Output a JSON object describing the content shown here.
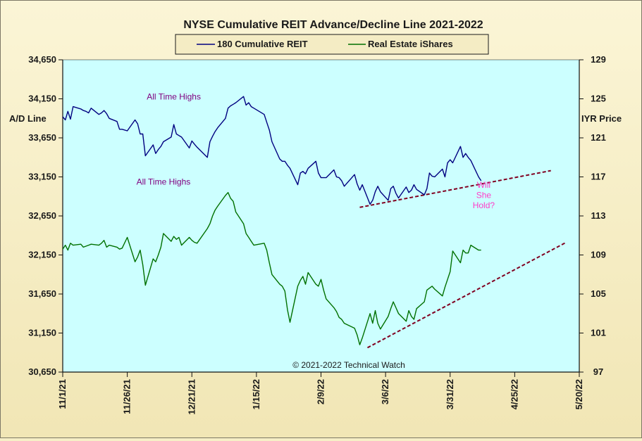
{
  "chart_data": {
    "type": "line",
    "title": "NYSE Cumulative  REIT Advance/Decline  Line 2021-2022",
    "legend": {
      "placement": "top-center"
    },
    "y_left": {
      "label": "A/D Line",
      "range": [
        30650,
        34650
      ],
      "ticks": [
        "34,650",
        "34,150",
        "33,650",
        "33,150",
        "32,650",
        "32,150",
        "31,650",
        "31,150",
        "30,650"
      ]
    },
    "y_right": {
      "label": "IYR Price",
      "range": [
        97,
        129
      ],
      "ticks": [
        "129",
        "125",
        "121",
        "117",
        "113",
        "109",
        "105",
        "101",
        "97"
      ]
    },
    "x_axis": {
      "type": "date",
      "ticks": [
        "11/1/21",
        "11/26/21",
        "12/21/21",
        "1/15/22",
        "2/9/22",
        "3/6/22",
        "3/31/22",
        "4/25/22",
        "5/20/22"
      ]
    },
    "colors": {
      "plot_bg": "#ccffff",
      "ad_line": "#000080",
      "iyr_line": "#007000",
      "trendline": "#800020",
      "annotation": "#800080",
      "question": "#ff3cc8"
    },
    "series": [
      {
        "name": "180 Cumulative REIT",
        "axis": "left",
        "points": [
          [
            "2021-11-01",
            33920
          ],
          [
            "2021-11-02",
            33880
          ],
          [
            "2021-11-03",
            33990
          ],
          [
            "2021-11-04",
            33890
          ],
          [
            "2021-11-05",
            34050
          ],
          [
            "2021-11-08",
            34020
          ],
          [
            "2021-11-09",
            34000
          ],
          [
            "2021-11-10",
            33990
          ],
          [
            "2021-11-11",
            33970
          ],
          [
            "2021-11-12",
            34030
          ],
          [
            "2021-11-15",
            33950
          ],
          [
            "2021-11-16",
            33970
          ],
          [
            "2021-11-17",
            34000
          ],
          [
            "2021-11-18",
            33960
          ],
          [
            "2021-11-19",
            33900
          ],
          [
            "2021-11-22",
            33860
          ],
          [
            "2021-11-23",
            33760
          ],
          [
            "2021-11-24",
            33760
          ],
          [
            "2021-11-26",
            33740
          ],
          [
            "2021-11-29",
            33880
          ],
          [
            "2021-11-30",
            33830
          ],
          [
            "2021-12-01",
            33700
          ],
          [
            "2021-12-02",
            33700
          ],
          [
            "2021-12-03",
            33420
          ],
          [
            "2021-12-06",
            33560
          ],
          [
            "2021-12-07",
            33450
          ],
          [
            "2021-12-08",
            33500
          ],
          [
            "2021-12-09",
            33540
          ],
          [
            "2021-12-10",
            33600
          ],
          [
            "2021-12-13",
            33660
          ],
          [
            "2021-12-14",
            33820
          ],
          [
            "2021-12-15",
            33700
          ],
          [
            "2021-12-16",
            33680
          ],
          [
            "2021-12-17",
            33660
          ],
          [
            "2021-12-20",
            33520
          ],
          [
            "2021-12-21",
            33610
          ],
          [
            "2021-12-22",
            33570
          ],
          [
            "2021-12-23",
            33530
          ],
          [
            "2021-12-27",
            33400
          ],
          [
            "2021-12-28",
            33600
          ],
          [
            "2021-12-29",
            33670
          ],
          [
            "2021-12-30",
            33730
          ],
          [
            "2021-12-31",
            33780
          ],
          [
            "2022-01-03",
            33900
          ],
          [
            "2022-01-04",
            34030
          ],
          [
            "2022-01-05",
            34060
          ],
          [
            "2022-01-06",
            34080
          ],
          [
            "2022-01-07",
            34100
          ],
          [
            "2022-01-10",
            34180
          ],
          [
            "2022-01-11",
            34070
          ],
          [
            "2022-01-12",
            34100
          ],
          [
            "2022-01-13",
            34050
          ],
          [
            "2022-01-14",
            34030
          ],
          [
            "2022-01-18",
            33950
          ],
          [
            "2022-01-19",
            33850
          ],
          [
            "2022-01-20",
            33750
          ],
          [
            "2022-01-21",
            33600
          ],
          [
            "2022-01-24",
            33380
          ],
          [
            "2022-01-25",
            33350
          ],
          [
            "2022-01-26",
            33350
          ],
          [
            "2022-01-27",
            33300
          ],
          [
            "2022-01-28",
            33260
          ],
          [
            "2022-01-31",
            33050
          ],
          [
            "2022-02-01",
            33200
          ],
          [
            "2022-02-02",
            33220
          ],
          [
            "2022-02-03",
            33190
          ],
          [
            "2022-02-04",
            33260
          ],
          [
            "2022-02-07",
            33350
          ],
          [
            "2022-02-08",
            33200
          ],
          [
            "2022-02-09",
            33140
          ],
          [
            "2022-02-10",
            33140
          ],
          [
            "2022-02-11",
            33140
          ],
          [
            "2022-02-14",
            33240
          ],
          [
            "2022-02-15",
            33150
          ],
          [
            "2022-02-16",
            33140
          ],
          [
            "2022-02-17",
            33100
          ],
          [
            "2022-02-18",
            33030
          ],
          [
            "2022-02-22",
            33180
          ],
          [
            "2022-02-23",
            33060
          ],
          [
            "2022-02-24",
            32980
          ],
          [
            "2022-02-25",
            33050
          ],
          [
            "2022-02-28",
            32800
          ],
          [
            "2022-03-01",
            32850
          ],
          [
            "2022-03-02",
            32960
          ],
          [
            "2022-03-03",
            33030
          ],
          [
            "2022-03-04",
            32960
          ],
          [
            "2022-03-07",
            32850
          ],
          [
            "2022-03-08",
            33000
          ],
          [
            "2022-03-09",
            33030
          ],
          [
            "2022-03-10",
            32940
          ],
          [
            "2022-03-11",
            32880
          ],
          [
            "2022-03-14",
            33020
          ],
          [
            "2022-03-15",
            32950
          ],
          [
            "2022-03-16",
            32980
          ],
          [
            "2022-03-17",
            33050
          ],
          [
            "2022-03-18",
            32990
          ],
          [
            "2022-03-21",
            32920
          ],
          [
            "2022-03-22",
            33000
          ],
          [
            "2022-03-23",
            33200
          ],
          [
            "2022-03-24",
            33160
          ],
          [
            "2022-03-25",
            33150
          ],
          [
            "2022-03-28",
            33250
          ],
          [
            "2022-03-29",
            33150
          ],
          [
            "2022-03-30",
            33330
          ],
          [
            "2022-03-31",
            33370
          ],
          [
            "2022-04-01",
            33330
          ],
          [
            "2022-04-04",
            33540
          ],
          [
            "2022-04-05",
            33400
          ],
          [
            "2022-04-06",
            33450
          ],
          [
            "2022-04-07",
            33400
          ],
          [
            "2022-04-08",
            33360
          ],
          [
            "2022-04-11",
            33150
          ],
          [
            "2022-04-12",
            33100
          ]
        ]
      },
      {
        "name": "Real Estate iShares",
        "axis": "right",
        "points": [
          [
            "2021-11-01",
            109.6
          ],
          [
            "2021-11-02",
            110.0
          ],
          [
            "2021-11-03",
            109.5
          ],
          [
            "2021-11-04",
            110.2
          ],
          [
            "2021-11-05",
            110.0
          ],
          [
            "2021-11-08",
            110.1
          ],
          [
            "2021-11-09",
            109.8
          ],
          [
            "2021-11-10",
            109.9
          ],
          [
            "2021-11-11",
            110.0
          ],
          [
            "2021-11-12",
            110.1
          ],
          [
            "2021-11-15",
            110.0
          ],
          [
            "2021-11-16",
            110.2
          ],
          [
            "2021-11-17",
            110.5
          ],
          [
            "2021-11-18",
            109.8
          ],
          [
            "2021-11-19",
            110.0
          ],
          [
            "2021-11-22",
            109.8
          ],
          [
            "2021-11-23",
            109.6
          ],
          [
            "2021-11-24",
            109.7
          ],
          [
            "2021-11-26",
            110.8
          ],
          [
            "2021-11-29",
            108.3
          ],
          [
            "2021-11-30",
            108.8
          ],
          [
            "2021-12-01",
            109.5
          ],
          [
            "2021-12-02",
            108.0
          ],
          [
            "2021-12-03",
            105.9
          ],
          [
            "2021-12-06",
            108.6
          ],
          [
            "2021-12-07",
            108.3
          ],
          [
            "2021-12-08",
            109.0
          ],
          [
            "2021-12-09",
            109.8
          ],
          [
            "2021-12-10",
            111.2
          ],
          [
            "2021-12-13",
            110.4
          ],
          [
            "2021-12-14",
            110.9
          ],
          [
            "2021-12-15",
            110.6
          ],
          [
            "2021-12-16",
            110.8
          ],
          [
            "2021-12-17",
            110.0
          ],
          [
            "2021-12-20",
            110.8
          ],
          [
            "2021-12-21",
            110.5
          ],
          [
            "2021-12-22",
            110.3
          ],
          [
            "2021-12-23",
            110.2
          ],
          [
            "2021-12-27",
            111.7
          ],
          [
            "2021-12-28",
            112.2
          ],
          [
            "2021-12-29",
            113.0
          ],
          [
            "2021-12-30",
            113.6
          ],
          [
            "2021-12-31",
            114.0
          ],
          [
            "2022-01-03",
            115.1
          ],
          [
            "2022-01-04",
            115.4
          ],
          [
            "2022-01-05",
            114.8
          ],
          [
            "2022-01-06",
            114.5
          ],
          [
            "2022-01-07",
            113.4
          ],
          [
            "2022-01-10",
            112.2
          ],
          [
            "2022-01-11",
            111.2
          ],
          [
            "2022-01-12",
            110.8
          ],
          [
            "2022-01-13",
            110.4
          ],
          [
            "2022-01-14",
            110.0
          ],
          [
            "2022-01-18",
            110.2
          ],
          [
            "2022-01-19",
            109.5
          ],
          [
            "2022-01-20",
            108.2
          ],
          [
            "2022-01-21",
            107.0
          ],
          [
            "2022-01-24",
            106.0
          ],
          [
            "2022-01-25",
            105.8
          ],
          [
            "2022-01-26",
            105.3
          ],
          [
            "2022-01-27",
            103.4
          ],
          [
            "2022-01-28",
            102.1
          ],
          [
            "2022-01-31",
            105.8
          ],
          [
            "2022-02-01",
            106.4
          ],
          [
            "2022-02-02",
            106.8
          ],
          [
            "2022-02-03",
            106.0
          ],
          [
            "2022-02-04",
            107.2
          ],
          [
            "2022-02-07",
            106.0
          ],
          [
            "2022-02-08",
            105.8
          ],
          [
            "2022-02-09",
            106.5
          ],
          [
            "2022-02-10",
            105.4
          ],
          [
            "2022-02-11",
            104.5
          ],
          [
            "2022-02-14",
            103.6
          ],
          [
            "2022-02-15",
            103.2
          ],
          [
            "2022-02-16",
            102.6
          ],
          [
            "2022-02-17",
            102.4
          ],
          [
            "2022-02-18",
            102.0
          ],
          [
            "2022-02-22",
            101.5
          ],
          [
            "2022-02-23",
            100.8
          ],
          [
            "2022-02-24",
            99.8
          ],
          [
            "2022-02-25",
            100.5
          ],
          [
            "2022-02-28",
            103.0
          ],
          [
            "2022-03-01",
            102.0
          ],
          [
            "2022-03-02",
            103.3
          ],
          [
            "2022-03-03",
            102.0
          ],
          [
            "2022-03-04",
            101.4
          ],
          [
            "2022-03-07",
            102.7
          ],
          [
            "2022-03-08",
            103.5
          ],
          [
            "2022-03-09",
            104.2
          ],
          [
            "2022-03-10",
            103.6
          ],
          [
            "2022-03-11",
            103.0
          ],
          [
            "2022-03-14",
            102.2
          ],
          [
            "2022-03-15",
            103.3
          ],
          [
            "2022-03-16",
            102.7
          ],
          [
            "2022-03-17",
            102.4
          ],
          [
            "2022-03-18",
            103.5
          ],
          [
            "2022-03-21",
            104.2
          ],
          [
            "2022-03-22",
            105.4
          ],
          [
            "2022-03-23",
            105.6
          ],
          [
            "2022-03-24",
            105.8
          ],
          [
            "2022-03-25",
            105.5
          ],
          [
            "2022-03-28",
            104.8
          ],
          [
            "2022-03-29",
            105.7
          ],
          [
            "2022-03-30",
            106.5
          ],
          [
            "2022-03-31",
            107.3
          ],
          [
            "2022-04-01",
            109.4
          ],
          [
            "2022-04-04",
            108.2
          ],
          [
            "2022-04-05",
            109.5
          ],
          [
            "2022-04-06",
            109.2
          ],
          [
            "2022-04-07",
            109.2
          ],
          [
            "2022-04-08",
            110.0
          ],
          [
            "2022-04-11",
            109.5
          ],
          [
            "2022-04-12",
            109.5
          ]
        ]
      }
    ],
    "trendlines": [
      {
        "axis": "left",
        "from": [
          "2022-02-24",
          32760
        ],
        "to": [
          "2022-05-09",
          33230
        ]
      },
      {
        "axis": "right",
        "from": [
          "2022-02-27",
          99.5
        ],
        "to": [
          "2022-05-15",
          110.3
        ]
      }
    ],
    "annotations": [
      {
        "text": "All Time Highs",
        "x": "2021-12-14",
        "axis": "left",
        "y": 34140,
        "color_key": "annotation"
      },
      {
        "text": "All Time Highs",
        "x": "2021-12-10",
        "axis": "right",
        "y": 116.2,
        "color_key": "annotation"
      },
      {
        "text": "Will",
        "x": "2022-04-13",
        "axis": "left",
        "y": 33010,
        "color_key": "question"
      },
      {
        "text": "She",
        "x": "2022-04-13",
        "axis": "left",
        "y": 32880,
        "color_key": "question"
      },
      {
        "text": "Hold?",
        "x": "2022-04-13",
        "axis": "left",
        "y": 32750,
        "color_key": "question"
      }
    ],
    "copyright": "© 2021-2022  Technical  Watch"
  }
}
